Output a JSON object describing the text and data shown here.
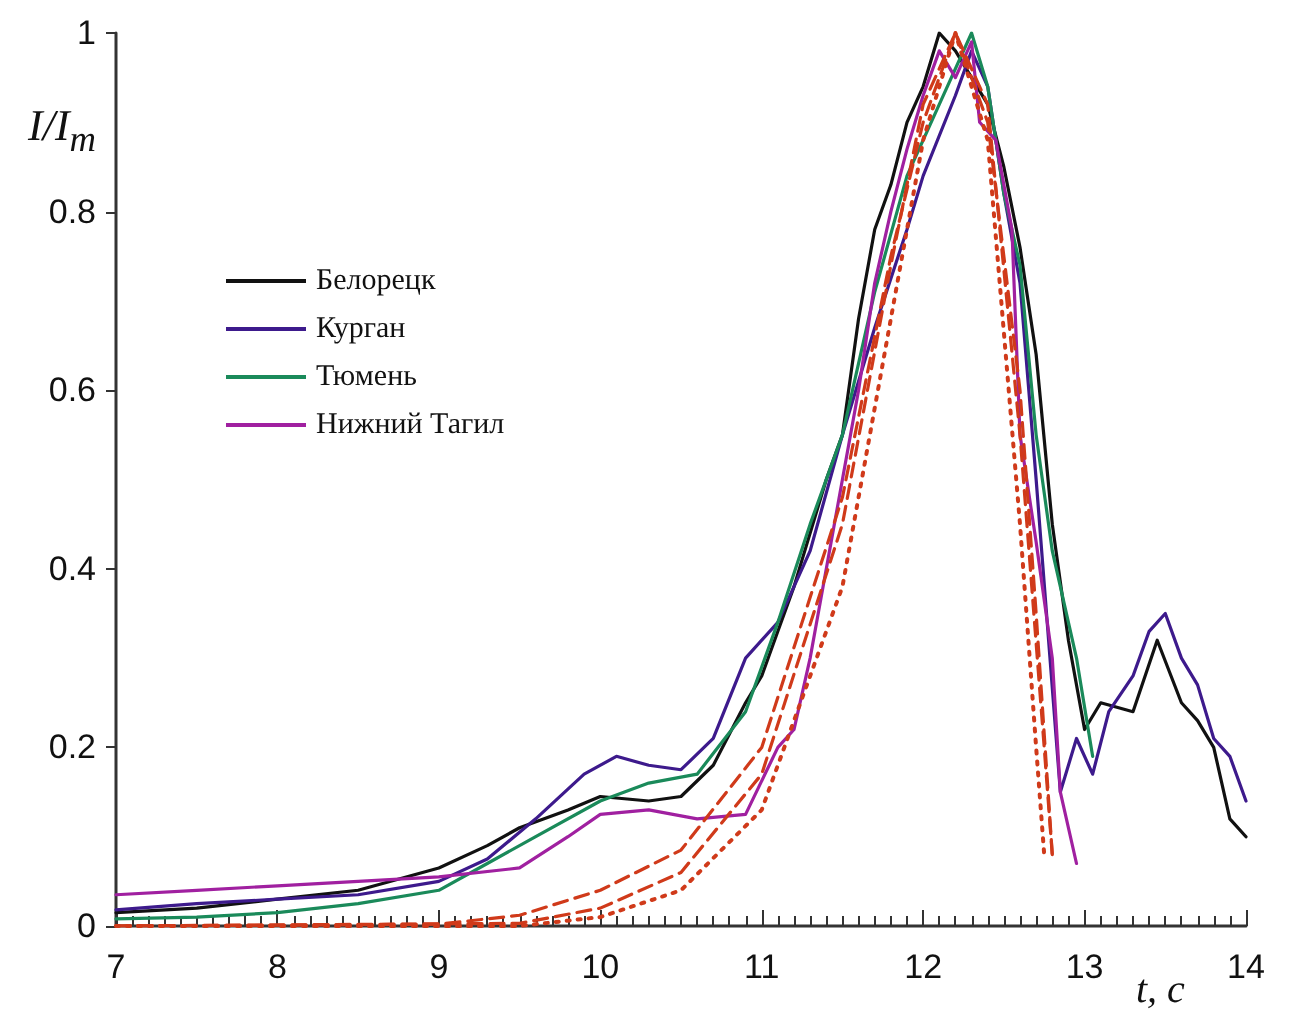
{
  "chart_data": {
    "type": "line",
    "xlabel": "t, с",
    "ylabel": "I/I$_{m}$",
    "xlim": [
      7,
      14
    ],
    "ylim": [
      0,
      1
    ],
    "xticks": [
      7,
      8,
      9,
      10,
      11,
      12,
      13,
      14
    ],
    "yticks": [
      0,
      0.2,
      0.4,
      0.6,
      0.8,
      1
    ],
    "legend": "left",
    "marker": "none",
    "line_style": "solid",
    "series": [
      {
        "name": "Белорецк",
        "color": "#111111",
        "x": [
          7,
          7.5,
          8,
          8.5,
          9,
          9.3,
          9.5,
          9.8,
          10,
          10.3,
          10.5,
          10.7,
          10.9,
          11,
          11.1,
          11.2,
          11.4,
          11.5,
          11.6,
          11.7,
          11.8,
          11.9,
          12,
          12.1,
          12.2,
          12.3,
          12.4,
          12.5,
          12.6,
          12.7,
          12.8,
          12.9,
          13,
          13.1,
          13.3,
          13.45,
          13.6,
          13.7,
          13.8,
          13.9,
          14
        ],
        "values": [
          0.015,
          0.02,
          0.03,
          0.04,
          0.065,
          0.09,
          0.11,
          0.13,
          0.145,
          0.14,
          0.145,
          0.18,
          0.25,
          0.28,
          0.33,
          0.38,
          0.5,
          0.55,
          0.68,
          0.78,
          0.83,
          0.9,
          0.94,
          1,
          0.98,
          0.95,
          0.92,
          0.85,
          0.76,
          0.64,
          0.45,
          0.32,
          0.22,
          0.25,
          0.24,
          0.32,
          0.25,
          0.23,
          0.2,
          0.12,
          0.1
        ]
      },
      {
        "name": "Курган",
        "color": "#3d1a8c",
        "x": [
          7,
          7.5,
          8,
          8.5,
          9,
          9.3,
          9.6,
          9.9,
          10.1,
          10.3,
          10.5,
          10.7,
          10.9,
          11.1,
          11.3,
          11.5,
          11.7,
          11.9,
          12,
          12.2,
          12.3,
          12.4,
          12.5,
          12.6,
          12.7,
          12.85,
          12.95,
          13.05,
          13.15,
          13.3,
          13.4,
          13.5,
          13.6,
          13.7,
          13.8,
          13.9,
          14
        ],
        "values": [
          0.018,
          0.025,
          0.03,
          0.035,
          0.05,
          0.075,
          0.12,
          0.17,
          0.19,
          0.18,
          0.175,
          0.21,
          0.3,
          0.34,
          0.42,
          0.55,
          0.67,
          0.78,
          0.84,
          0.93,
          0.98,
          0.94,
          0.82,
          0.72,
          0.5,
          0.15,
          0.21,
          0.17,
          0.24,
          0.28,
          0.33,
          0.35,
          0.3,
          0.27,
          0.21,
          0.19,
          0.14
        ]
      },
      {
        "name": "Тюмень",
        "color": "#1a8a5a",
        "x": [
          7,
          7.5,
          8,
          8.5,
          9,
          9.3,
          9.6,
          10,
          10.3,
          10.6,
          10.9,
          11.1,
          11.3,
          11.5,
          11.7,
          11.9,
          12.1,
          12.3,
          12.4,
          12.5,
          12.6,
          12.7,
          12.8,
          12.95,
          13.05
        ],
        "values": [
          0.008,
          0.01,
          0.015,
          0.025,
          0.04,
          0.07,
          0.1,
          0.14,
          0.16,
          0.17,
          0.24,
          0.34,
          0.45,
          0.55,
          0.71,
          0.84,
          0.92,
          1,
          0.94,
          0.82,
          0.74,
          0.55,
          0.42,
          0.3,
          0.19
        ]
      },
      {
        "name": "Нижний Тагил",
        "color": "#a020a0",
        "x": [
          7,
          7.5,
          8,
          8.5,
          9,
          9.5,
          9.8,
          10,
          10.3,
          10.6,
          10.9,
          11.1,
          11.2,
          11.3,
          11.35,
          11.5,
          11.6,
          11.7,
          11.8,
          11.9,
          12,
          12.1,
          12.2,
          12.3,
          12.35,
          12.45,
          12.55,
          12.6,
          12.7,
          12.8,
          12.85,
          12.95
        ],
        "values": [
          0.035,
          0.04,
          0.045,
          0.05,
          0.055,
          0.065,
          0.1,
          0.125,
          0.13,
          0.12,
          0.125,
          0.2,
          0.22,
          0.3,
          0.35,
          0.5,
          0.6,
          0.72,
          0.8,
          0.87,
          0.93,
          0.98,
          0.95,
          0.99,
          0.9,
          0.88,
          0.78,
          0.55,
          0.43,
          0.3,
          0.15,
          0.07
        ]
      },
      {
        "color": "#d03a1a",
        "line_style": "dashed",
        "x": [
          7,
          9,
          9.5,
          10,
          10.5,
          11,
          11.5,
          11.8,
          12,
          12.2,
          12.4,
          12.6,
          12.7,
          12.8
        ],
        "values": [
          0,
          0.002,
          0.012,
          0.04,
          0.085,
          0.2,
          0.48,
          0.75,
          0.9,
          1,
          0.9,
          0.6,
          0.35,
          0.08
        ]
      },
      {
        "color": "#d03a1a",
        "line_style": "dashed",
        "x": [
          7,
          9.5,
          10,
          10.5,
          11,
          11.5,
          11.8,
          12,
          12.2,
          12.4,
          12.6,
          12.75,
          12.8
        ],
        "values": [
          0,
          0.003,
          0.02,
          0.06,
          0.17,
          0.45,
          0.74,
          0.92,
          1,
          0.92,
          0.55,
          0.2,
          0.08
        ]
      },
      {
        "color": "#d03a1a",
        "line_style": "dotted",
        "x": [
          7,
          9.5,
          10,
          10.5,
          11,
          11.5,
          11.8,
          12,
          12.2,
          12.4,
          12.6,
          12.7,
          12.75
        ],
        "values": [
          0,
          0,
          0.01,
          0.04,
          0.13,
          0.38,
          0.68,
          0.88,
          1,
          0.88,
          0.45,
          0.2,
          0.08
        ]
      }
    ]
  }
}
